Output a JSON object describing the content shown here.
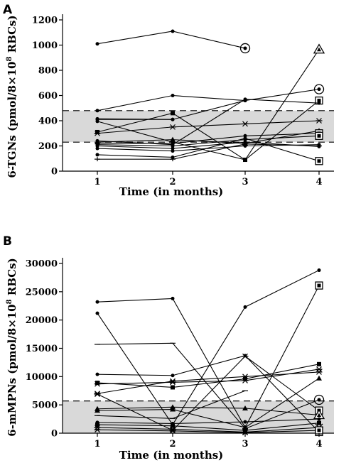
{
  "chart_data": [
    {
      "panel": "A",
      "type": "line",
      "ylabel": "6-TGNs (pmol/8×10",
      "ylabel_sup": "8",
      "ylabel_tail": " RBCs)",
      "xlabel": "Time (in months)",
      "x": [
        1,
        2,
        3,
        4
      ],
      "xticks": [
        "1",
        "2",
        "3",
        "4"
      ],
      "ylim": [
        0,
        1200
      ],
      "yticks": [
        "0",
        "200",
        "400",
        "600",
        "800",
        "1000",
        "1200"
      ],
      "yticks_values": [
        0,
        200,
        400,
        600,
        800,
        1000,
        1200
      ],
      "reference_band": [
        230,
        480
      ],
      "band_color": "#d9d9d9",
      "series": [
        {
          "values": [
            1010,
            1110,
            975,
            null
          ],
          "marker": "dot",
          "end_marker": "circle"
        },
        {
          "values": [
            480,
            600,
            560,
            null
          ],
          "marker": "dot"
        },
        {
          "values": [
            415,
            410,
            560,
            650
          ],
          "marker": "dot",
          "end_marker": "circle"
        },
        {
          "values": [
            395,
            230,
            90,
            965
          ],
          "marker": "dot",
          "end_marker": "triangle"
        },
        {
          "values": [
            410,
            410,
            null,
            null
          ],
          "marker": "dot"
        },
        {
          "values": [
            300,
            350,
            375,
            400
          ],
          "marker": "star"
        },
        {
          "values": [
            310,
            460,
            90,
            560
          ],
          "marker": "square",
          "end_marker": "square"
        },
        {
          "values": [
            240,
            210,
            570,
            540
          ],
          "marker": "dot"
        },
        {
          "values": [
            230,
            250,
            220,
            320
          ],
          "marker": "triangle"
        },
        {
          "values": [
            220,
            220,
            280,
            300
          ],
          "marker": "dot",
          "end_marker": "square"
        },
        {
          "values": [
            210,
            200,
            250,
            280
          ],
          "marker": "dot",
          "end_marker": "square"
        },
        {
          "values": [
            200,
            180,
            230,
            195
          ],
          "marker": "dot"
        },
        {
          "values": [
            180,
            160,
            200,
            210
          ],
          "marker": "dot"
        },
        {
          "values": [
            130,
            110,
            260,
            80
          ],
          "marker": "dot",
          "end_marker": "square"
        },
        {
          "values": [
            95,
            95,
            215,
            200
          ],
          "marker": "tick"
        }
      ]
    },
    {
      "panel": "B",
      "type": "line",
      "ylabel": "6-mMPNs (pmol/8×10",
      "ylabel_sup": "8",
      "ylabel_tail": " RBCs)",
      "xlabel": "Time (in months)",
      "x": [
        1,
        2,
        3,
        4
      ],
      "xticks": [
        "1",
        "2",
        "3",
        "4"
      ],
      "ylim": [
        0,
        30000
      ],
      "yticks": [
        "0",
        "5000",
        "10000",
        "15000",
        "20000",
        "25000",
        "30000"
      ],
      "yticks_values": [
        0,
        5000,
        10000,
        15000,
        20000,
        25000,
        30000
      ],
      "reference_band": [
        0,
        5700
      ],
      "band_color": "#d9d9d9",
      "series": [
        {
          "values": [
            23200,
            23800,
            1000,
            26100
          ],
          "marker": "dot",
          "end_marker": "square"
        },
        {
          "values": [
            21200,
            1500,
            22300,
            28800
          ],
          "marker": "dot"
        },
        {
          "values": [
            15700,
            15900,
            800,
            5900
          ],
          "marker": "dash",
          "end_marker": "circle"
        },
        {
          "values": [
            10400,
            10200,
            13700,
            200
          ],
          "marker": "dot",
          "end_marker": "square"
        },
        {
          "values": [
            8900,
            8100,
            9600,
            12200
          ],
          "marker": "square"
        },
        {
          "values": [
            8700,
            9000,
            9300,
            11300
          ],
          "marker": "star"
        },
        {
          "values": [
            7000,
            9200,
            10000,
            10800
          ],
          "marker": "star"
        },
        {
          "values": [
            6900,
            500,
            13600,
            4000
          ],
          "marker": "star",
          "end_marker": "square"
        },
        {
          "values": [
            4300,
            4600,
            4400,
            3200
          ],
          "marker": "triangle",
          "end_marker": "triangle"
        },
        {
          "values": [
            4000,
            4200,
            1000,
            9700
          ],
          "marker": "triangle"
        },
        {
          "values": [
            3100,
            2600,
            7500,
            null
          ],
          "marker": "dash"
        },
        {
          "values": [
            1900,
            1700,
            2000,
            2500
          ],
          "marker": "dot"
        },
        {
          "values": [
            1500,
            1300,
            500,
            1800
          ],
          "marker": "square"
        },
        {
          "values": [
            1000,
            700,
            200,
            1000
          ],
          "marker": "star",
          "end_marker": "star"
        },
        {
          "values": [
            600,
            400,
            100,
            500
          ],
          "marker": "star",
          "end_marker": "square"
        }
      ]
    }
  ]
}
